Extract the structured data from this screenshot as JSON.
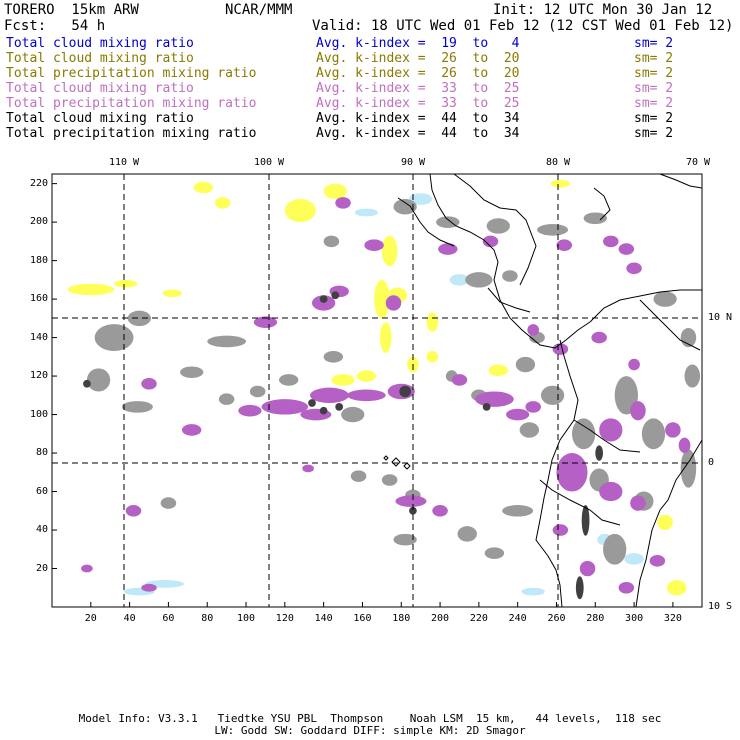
{
  "header": {
    "model": "TORERO  15km ARW",
    "org": "NCAR/MMM",
    "init": "Init: 12 UTC Mon 30 Jan 12",
    "fcst": "Fcst:   54 h",
    "valid": "Valid: 18 UTC Wed 01 Feb 12 (12 CST Wed 01 Feb 12)"
  },
  "legend": [
    {
      "name": "Total cloud mixing ratio",
      "index": "Avg. k-index =  19  to   4",
      "sm": "sm= 2",
      "color": "#0000cc"
    },
    {
      "name": "Total cloud mixing ratio",
      "index": "Avg. k-index =  26  to  20",
      "sm": "sm= 2",
      "color": "#8a7a00"
    },
    {
      "name": "Total precipitation mixing ratio",
      "index": "Avg. k-index =  26  to  20",
      "sm": "sm= 2",
      "color": "#8a7a00"
    },
    {
      "name": "Total cloud mixing ratio",
      "index": "Avg. k-index =  33  to  25",
      "sm": "sm= 2",
      "color": "#c070c0"
    },
    {
      "name": "Total precipitation mixing ratio",
      "index": "Avg. k-index =  33  to  25",
      "sm": "sm= 2",
      "color": "#c070c0"
    },
    {
      "name": "Total cloud mixing ratio",
      "index": "Avg. k-index =  44  to  34",
      "sm": "sm= 2",
      "color": "#000000"
    },
    {
      "name": "Total precipitation mixing ratio",
      "index": "Avg. k-index =  44  to  34",
      "sm": "sm= 2",
      "color": "#000000"
    }
  ],
  "map": {
    "lon_labels": [
      "110 W",
      "100 W",
      "90 W",
      "80 W",
      "70 W"
    ],
    "lat_labels": [
      "10 N",
      "0",
      "10 S"
    ],
    "grid_x_labels": [
      "20",
      "40",
      "60",
      "80",
      "100",
      "120",
      "140",
      "160",
      "180",
      "200",
      "220",
      "240",
      "260",
      "280",
      "300",
      "320"
    ],
    "grid_y_labels": [
      "220",
      "200",
      "180",
      "160",
      "140",
      "120",
      "100",
      "80",
      "60",
      "40",
      "20"
    ],
    "grid_x_range": [
      0,
      335
    ],
    "grid_y_range": [
      0,
      225
    ],
    "colors": {
      "cyan": "#bfe8f8",
      "yellow": "#ffff5a",
      "purple": "#b560c4",
      "gray": "#9a9a9a",
      "dark": "#404040",
      "coast": "#000000"
    }
  },
  "footer": {
    "line1": "Model Info: V3.3.1   Tiedtke YSU PBL  Thompson    Noah LSM  15 km,   44 levels,  118 sec",
    "line2": "LW: Godd SW: Goddard DIFF: simple KM: 2D Smagor"
  }
}
